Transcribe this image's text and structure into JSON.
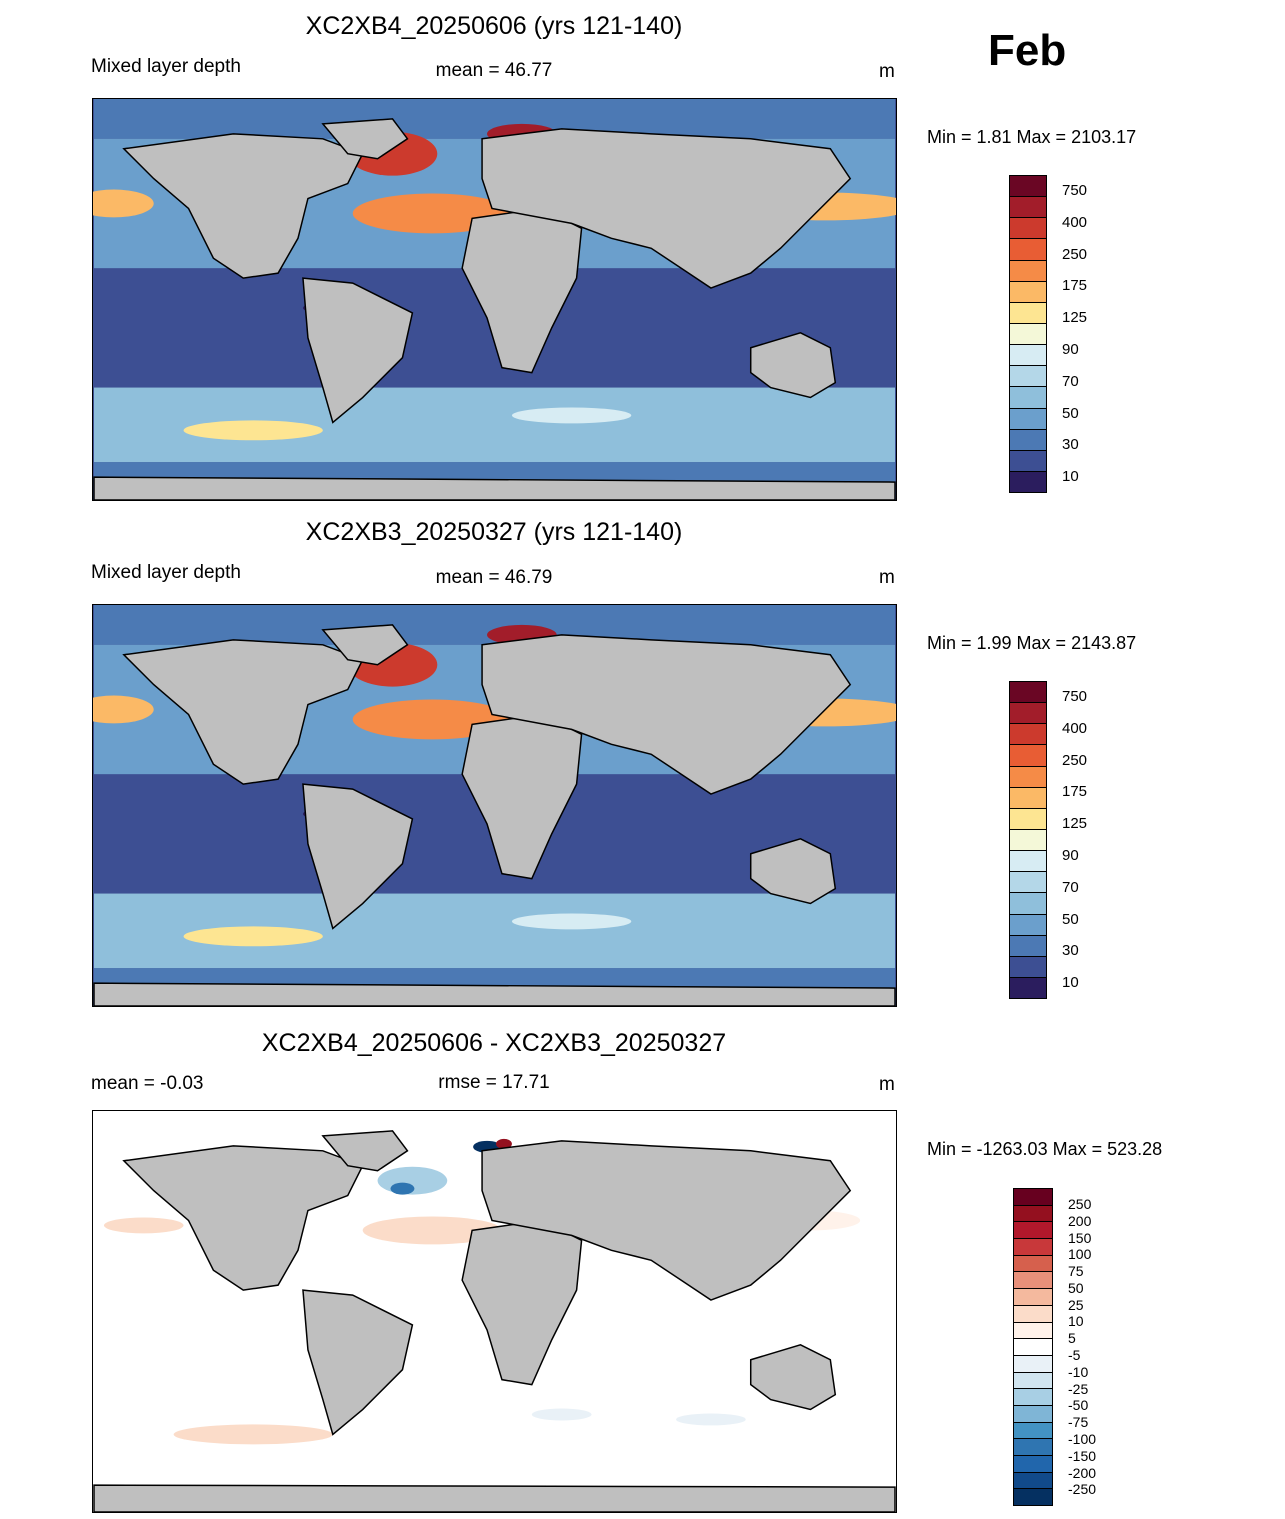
{
  "month": "Feb",
  "panels": [
    {
      "title": "XC2XB4_20250606 (yrs 121-140)",
      "left_label": "Mixed layer depth",
      "center_label": "mean =  46.77",
      "units": "m",
      "minmax": "Min =    1.81 Max = 2103.17",
      "colorbar_labels": [
        "750",
        "400",
        "250",
        "175",
        "125",
        "90",
        "70",
        "50",
        "30",
        "10"
      ]
    },
    {
      "title": "XC2XB3_20250327 (yrs 121-140)",
      "left_label": "Mixed layer depth",
      "center_label": "mean =  46.79",
      "units": "m",
      "minmax": "Min =    1.99 Max = 2143.87",
      "colorbar_labels": [
        "750",
        "400",
        "250",
        "175",
        "125",
        "90",
        "70",
        "50",
        "30",
        "10"
      ]
    },
    {
      "title": "XC2XB4_20250606 - XC2XB3_20250327",
      "left_label": "mean =  -0.03",
      "center_label": "rmse =  17.71",
      "units": "m",
      "minmax": "Min = -1263.03 Max = 523.28",
      "colorbar_labels": [
        "250",
        "200",
        "150",
        "100",
        "75",
        "50",
        "25",
        "10",
        "5",
        "-5",
        "-10",
        "-25",
        "-50",
        "-75",
        "-100",
        "-150",
        "-200",
        "-250"
      ]
    }
  ],
  "colors": {
    "mld_scale": [
      "#6a0624",
      "#a21d2a",
      "#cc3a2d",
      "#e85d34",
      "#f58b47",
      "#fbb966",
      "#fde592",
      "#f4f8d8",
      "#d7ecf3",
      "#b4d7e8",
      "#8fbfdb",
      "#6b9fcc",
      "#4c79b4",
      "#3d4f93",
      "#2b1d5e"
    ],
    "diff_scale": [
      "#67001f",
      "#94101f",
      "#b2182b",
      "#c8383a",
      "#d6604d",
      "#e8907a",
      "#f4b99e",
      "#fbdcc9",
      "#fff2ea",
      "#ffffff",
      "#e9f1f7",
      "#d1e5f0",
      "#a8cfe4",
      "#7fb5d6",
      "#4393c3",
      "#2f75b1",
      "#2166ac",
      "#114a8a",
      "#053061"
    ],
    "land": "#bfbfbf"
  }
}
